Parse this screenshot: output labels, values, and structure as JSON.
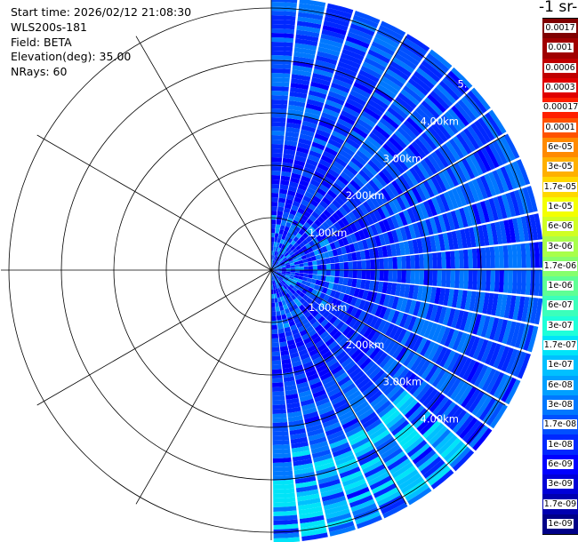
{
  "info": {
    "start_time": "Start time: 2026/02/12 21:08:30",
    "instrument": "WLS200s-181",
    "field": "Field: BETA",
    "elevation": "Elevation(deg): 35.00",
    "nrays": "NRays: 60"
  },
  "colorbar": {
    "unit_label": "-1 sr-",
    "labels": [
      "0.0017",
      "0.001",
      "0.0006",
      "0.0003",
      "0.00017",
      "0.0001",
      "6e-05",
      "3e-05",
      "1.7e-05",
      "1e-05",
      "6e-06",
      "3e-06",
      "1.7e-06",
      "1e-06",
      "6e-07",
      "3e-07",
      "1.7e-07",
      "1e-07",
      "6e-08",
      "3e-08",
      "1.7e-08",
      "1e-08",
      "6e-09",
      "3e-09",
      "1.7e-09",
      "1e-09"
    ],
    "colors": [
      "#800000",
      "#a00000",
      "#c00000",
      "#e00000",
      "#ff1f00",
      "#ff5200",
      "#ff8a00",
      "#ffb000",
      "#ffd800",
      "#f4ff00",
      "#d0ff23",
      "#a8ff4b",
      "#86ff6d",
      "#5fff94",
      "#3bffbb",
      "#1effd9",
      "#00e4f8",
      "#00c0ff",
      "#00a0ff",
      "#0078ff",
      "#0050ff",
      "#0028ff",
      "#0000ff",
      "#0000d8",
      "#0000b0",
      "#000088"
    ]
  },
  "chart_data": {
    "type": "heatmap",
    "projection": "polar (PPI scan)",
    "field": "BETA",
    "nrays": 60,
    "range_rings": [
      "1.00km",
      "2.00km",
      "3.00km",
      "4.00km"
    ],
    "top_ring_label_partial": "5.",
    "azimuth_coverage_deg": [
      0,
      180
    ],
    "dominant_levels": [
      "6e-08",
      "3e-08",
      "1.7e-08",
      "1e-08"
    ],
    "max_observed_level": "1.7e-07",
    "enhanced_region": "south-southeast sector, 3.5-5 km range"
  }
}
